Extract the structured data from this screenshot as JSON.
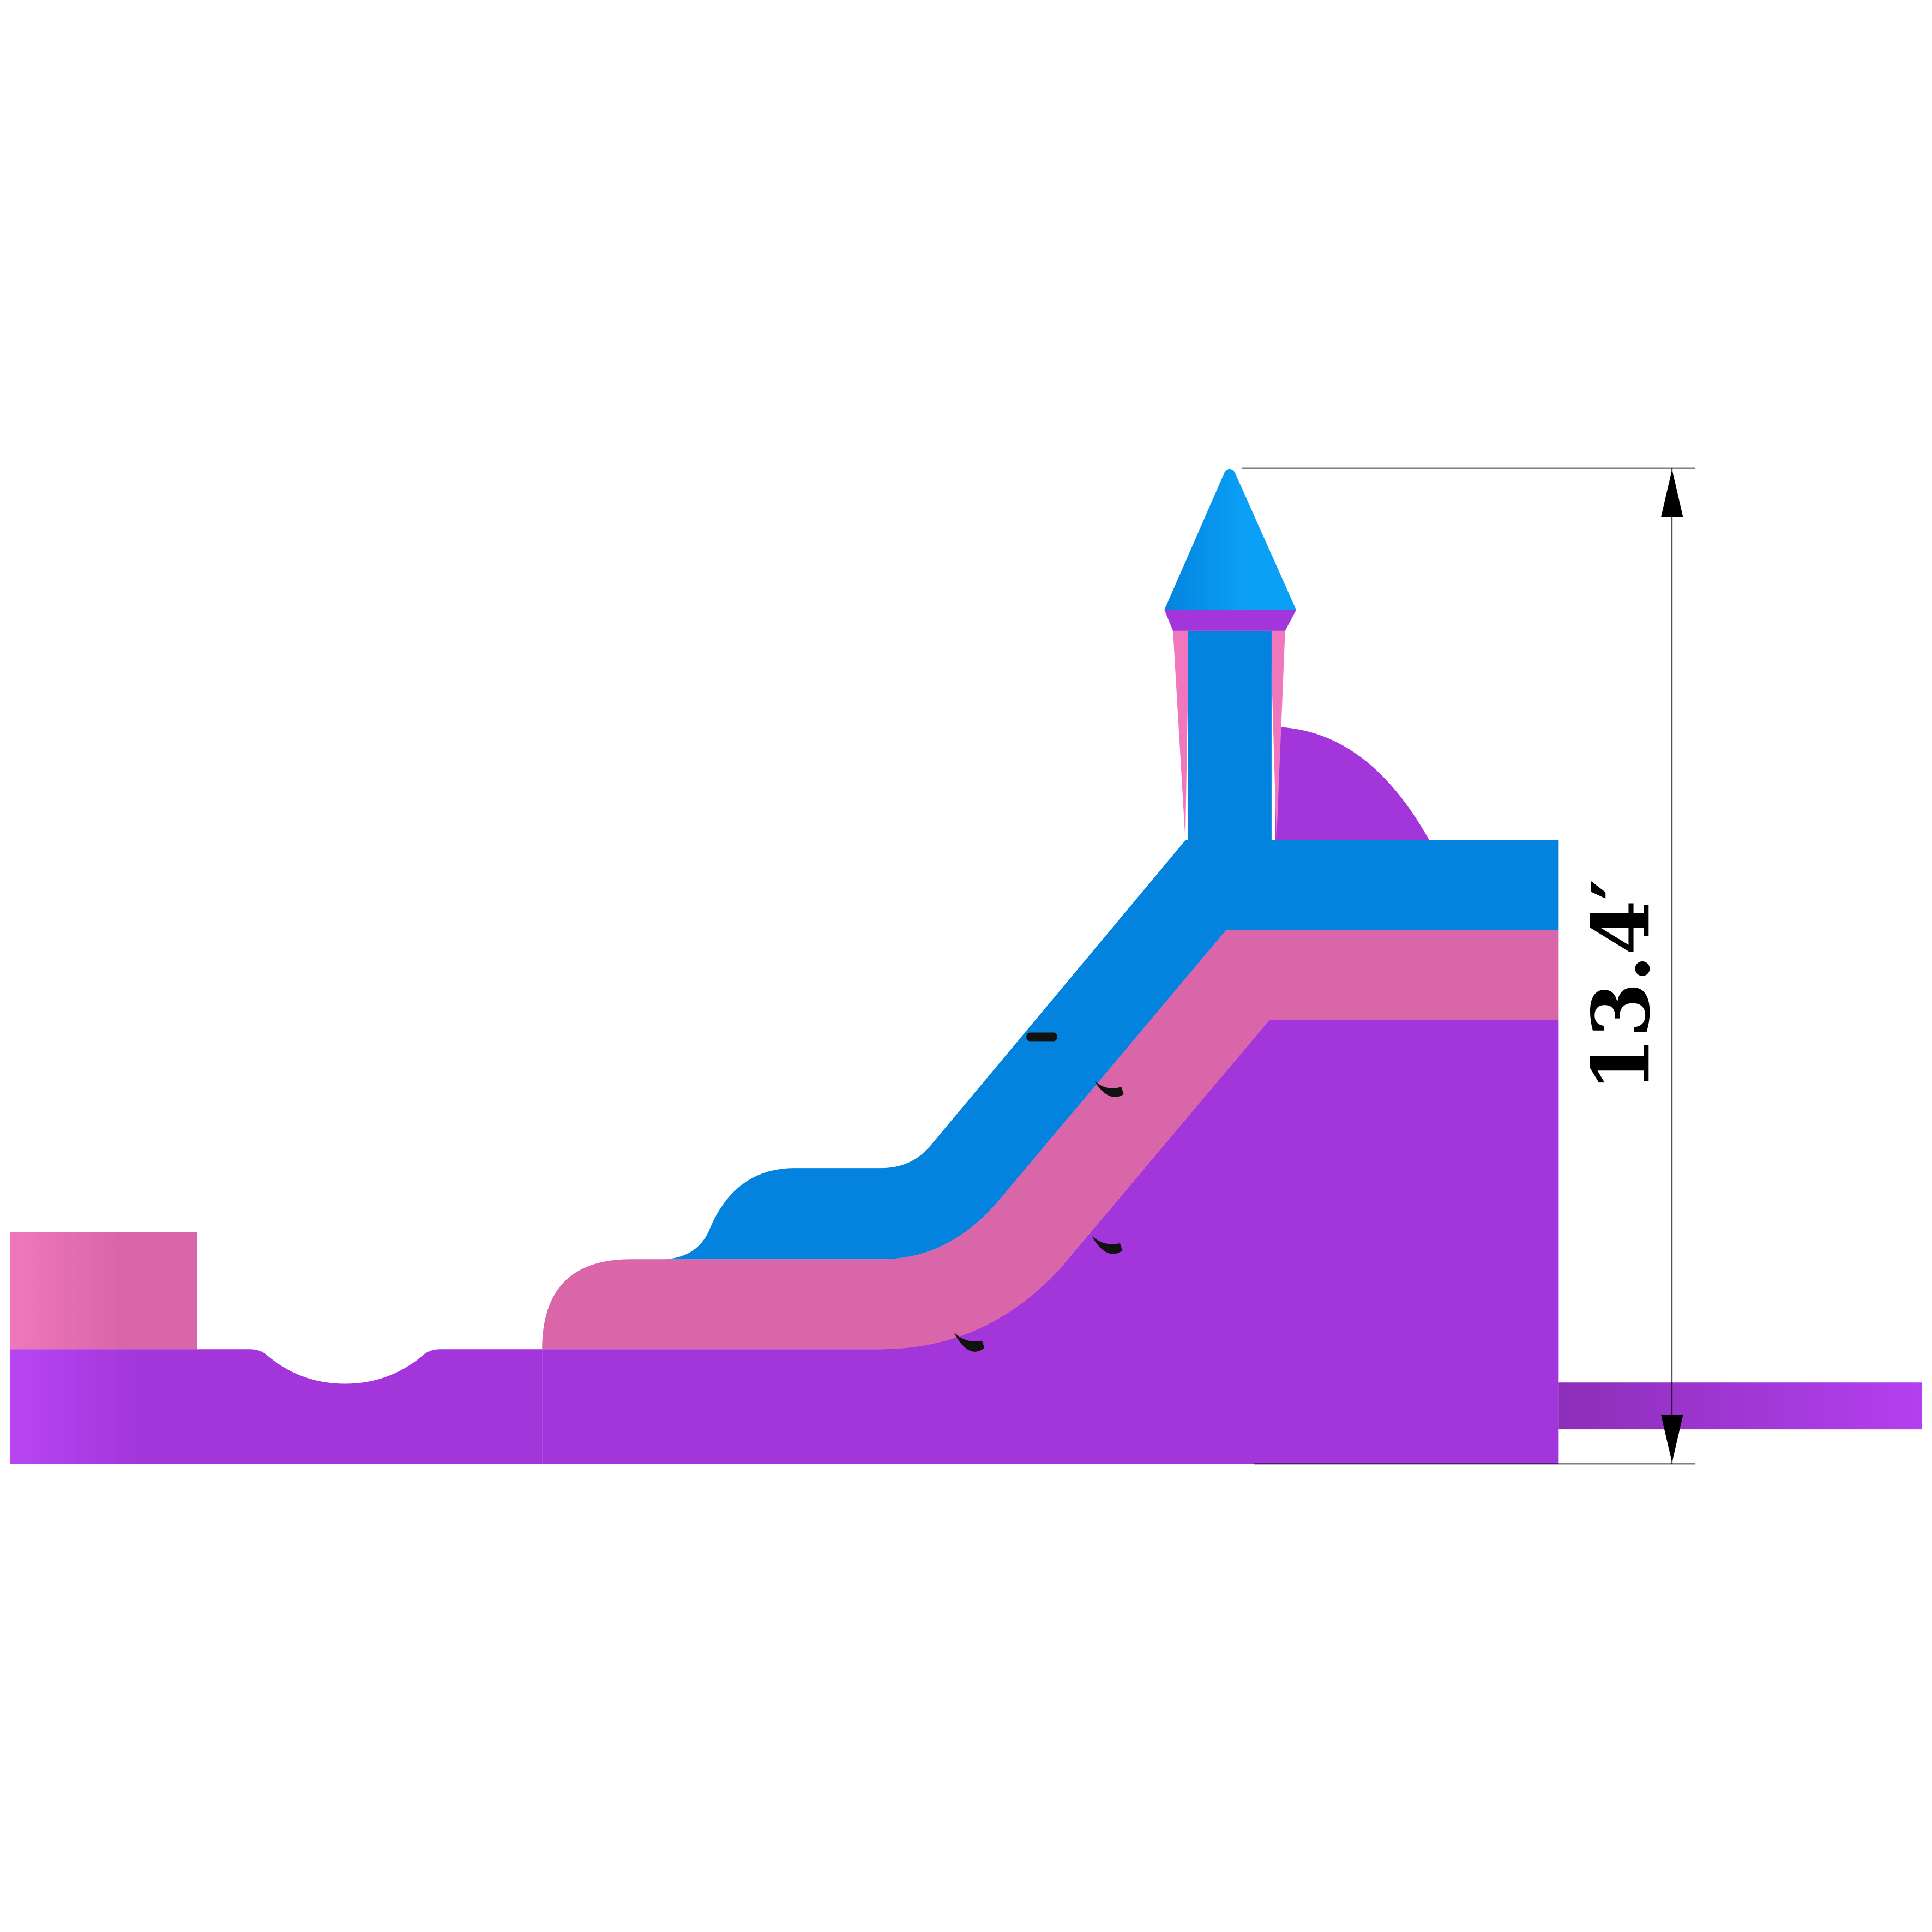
{
  "dimension": {
    "height_label": "13.4′"
  },
  "colors": {
    "purple": "#a236da",
    "pink": "#d966a8",
    "blue": "#0383de",
    "light_blue": "#0aa0f5",
    "light_pink": "#f077bd"
  }
}
